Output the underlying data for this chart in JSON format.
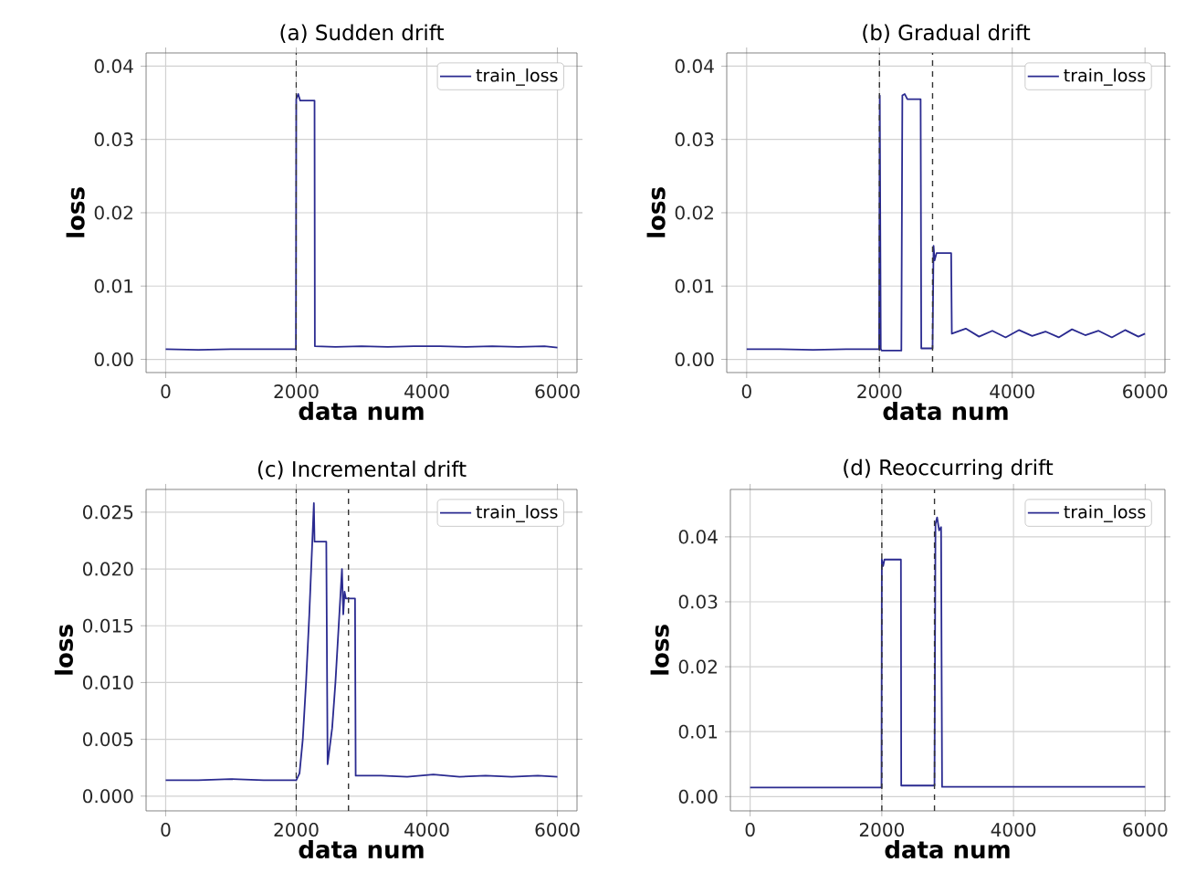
{
  "chart_data": [
    {
      "type": "line",
      "title": "(a) Sudden drift",
      "xlabel": "data num",
      "ylabel": "loss",
      "xlim": [
        -300,
        6300
      ],
      "ylim": [
        -0.0018,
        0.0418
      ],
      "xticks": [
        0,
        2000,
        4000,
        6000
      ],
      "yticks": [
        {
          "value": 0,
          "label": "0.00"
        },
        {
          "value": 0.01,
          "label": "0.01"
        },
        {
          "value": 0.02,
          "label": "0.02"
        },
        {
          "value": 0.03,
          "label": "0.03"
        },
        {
          "value": 0.04,
          "label": "0.04"
        }
      ],
      "grid": true,
      "legend": "top right",
      "ref_lines": [
        {
          "axis": "x",
          "value": 2000,
          "color": "#333333",
          "line_style": "dashed"
        }
      ],
      "series": [
        {
          "name": "train_loss",
          "color": "#2a2a90",
          "x": [
            0,
            500,
            1000,
            1500,
            1995,
            2000,
            2030,
            2060,
            2280,
            2285,
            2600,
            3000,
            3400,
            3800,
            4200,
            4600,
            5000,
            5400,
            5800,
            6000
          ],
          "values": [
            0.0014,
            0.0013,
            0.0014,
            0.0014,
            0.0014,
            0.0355,
            0.0362,
            0.0353,
            0.0353,
            0.0018,
            0.0017,
            0.0018,
            0.0017,
            0.0018,
            0.0018,
            0.0017,
            0.0018,
            0.0017,
            0.0018,
            0.0016
          ]
        }
      ]
    },
    {
      "type": "line",
      "title": "(b) Gradual drift",
      "xlabel": "data num",
      "ylabel": "loss",
      "xlim": [
        -300,
        6300
      ],
      "ylim": [
        -0.0018,
        0.0418
      ],
      "xticks": [
        0,
        2000,
        4000,
        6000
      ],
      "yticks": [
        {
          "value": 0,
          "label": "0.00"
        },
        {
          "value": 0.01,
          "label": "0.01"
        },
        {
          "value": 0.02,
          "label": "0.02"
        },
        {
          "value": 0.03,
          "label": "0.03"
        },
        {
          "value": 0.04,
          "label": "0.04"
        }
      ],
      "grid": true,
      "legend": "top right",
      "ref_lines": [
        {
          "axis": "x",
          "value": 2000,
          "color": "#333333",
          "line_style": "dashed"
        },
        {
          "axis": "x",
          "value": 2800,
          "color": "#333333",
          "line_style": "dashed"
        }
      ],
      "series": [
        {
          "name": "train_loss",
          "color": "#2a2a90",
          "x": [
            0,
            500,
            1000,
            1500,
            1995,
            2005,
            2020,
            2035,
            2330,
            2345,
            2380,
            2420,
            2620,
            2630,
            2800,
            2815,
            2830,
            2860,
            3080,
            3090,
            3300,
            3500,
            3700,
            3900,
            4100,
            4300,
            4500,
            4700,
            4900,
            5100,
            5300,
            5500,
            5700,
            5900,
            6000
          ],
          "values": [
            0.0014,
            0.0014,
            0.0013,
            0.0014,
            0.0014,
            0.036,
            0.0014,
            0.0012,
            0.0012,
            0.036,
            0.0362,
            0.0355,
            0.0355,
            0.0015,
            0.0015,
            0.0155,
            0.0135,
            0.0145,
            0.0145,
            0.0035,
            0.0042,
            0.0031,
            0.0039,
            0.003,
            0.004,
            0.0032,
            0.0038,
            0.003,
            0.0041,
            0.0033,
            0.0039,
            0.003,
            0.004,
            0.0031,
            0.0035
          ]
        }
      ]
    },
    {
      "type": "line",
      "title": "(c) Incremental drift",
      "xlabel": "data num",
      "ylabel": "loss",
      "xlim": [
        -300,
        6300
      ],
      "ylim": [
        -0.0013,
        0.027
      ],
      "xticks": [
        0,
        2000,
        4000,
        6000
      ],
      "yticks": [
        {
          "value": 0,
          "label": "0.000"
        },
        {
          "value": 0.005,
          "label": "0.005"
        },
        {
          "value": 0.01,
          "label": "0.010"
        },
        {
          "value": 0.015,
          "label": "0.015"
        },
        {
          "value": 0.02,
          "label": "0.020"
        },
        {
          "value": 0.025,
          "label": "0.025"
        }
      ],
      "grid": true,
      "legend": "top right",
      "ref_lines": [
        {
          "axis": "x",
          "value": 2000,
          "color": "#333333",
          "line_style": "dashed"
        },
        {
          "axis": "x",
          "value": 2800,
          "color": "#333333",
          "line_style": "dashed"
        }
      ],
      "series": [
        {
          "name": "train_loss",
          "color": "#2a2a90",
          "x": [
            0,
            500,
            1000,
            1500,
            2000,
            2050,
            2100,
            2150,
            2200,
            2270,
            2280,
            2460,
            2480,
            2550,
            2600,
            2650,
            2700,
            2720,
            2740,
            2760,
            2900,
            2910,
            3300,
            3700,
            4100,
            4500,
            4900,
            5300,
            5700,
            6000
          ],
          "values": [
            0.0014,
            0.0014,
            0.0015,
            0.0014,
            0.0014,
            0.002,
            0.005,
            0.01,
            0.016,
            0.0258,
            0.0224,
            0.0224,
            0.0028,
            0.006,
            0.01,
            0.015,
            0.02,
            0.016,
            0.018,
            0.0174,
            0.0174,
            0.0018,
            0.0018,
            0.0017,
            0.0019,
            0.0017,
            0.0018,
            0.0017,
            0.0018,
            0.0017
          ]
        }
      ]
    },
    {
      "type": "line",
      "title": "(d) Reoccurring drift",
      "xlabel": "data num",
      "ylabel": "loss",
      "xlim": [
        -300,
        6300
      ],
      "ylim": [
        -0.0022,
        0.0473
      ],
      "xticks": [
        0,
        2000,
        4000,
        6000
      ],
      "yticks": [
        {
          "value": 0,
          "label": "0.00"
        },
        {
          "value": 0.01,
          "label": "0.01"
        },
        {
          "value": 0.02,
          "label": "0.02"
        },
        {
          "value": 0.03,
          "label": "0.03"
        },
        {
          "value": 0.04,
          "label": "0.04"
        }
      ],
      "grid": true,
      "legend": "top right",
      "ref_lines": [
        {
          "axis": "x",
          "value": 2000,
          "color": "#333333",
          "line_style": "dashed"
        },
        {
          "axis": "x",
          "value": 2800,
          "color": "#333333",
          "line_style": "dashed"
        }
      ],
      "series": [
        {
          "name": "train_loss",
          "color": "#2a2a90",
          "x": [
            0,
            500,
            1000,
            1500,
            1995,
            2000,
            2020,
            2040,
            2290,
            2295,
            2500,
            2800,
            2815,
            2840,
            2870,
            2900,
            2915,
            3400,
            4000,
            4600,
            5200,
            6000
          ],
          "values": [
            0.0014,
            0.0014,
            0.0014,
            0.0014,
            0.0014,
            0.0365,
            0.0355,
            0.0365,
            0.0365,
            0.0017,
            0.0017,
            0.0017,
            0.042,
            0.043,
            0.041,
            0.0415,
            0.0015,
            0.0015,
            0.0015,
            0.0015,
            0.0015,
            0.0015
          ]
        }
      ]
    }
  ]
}
